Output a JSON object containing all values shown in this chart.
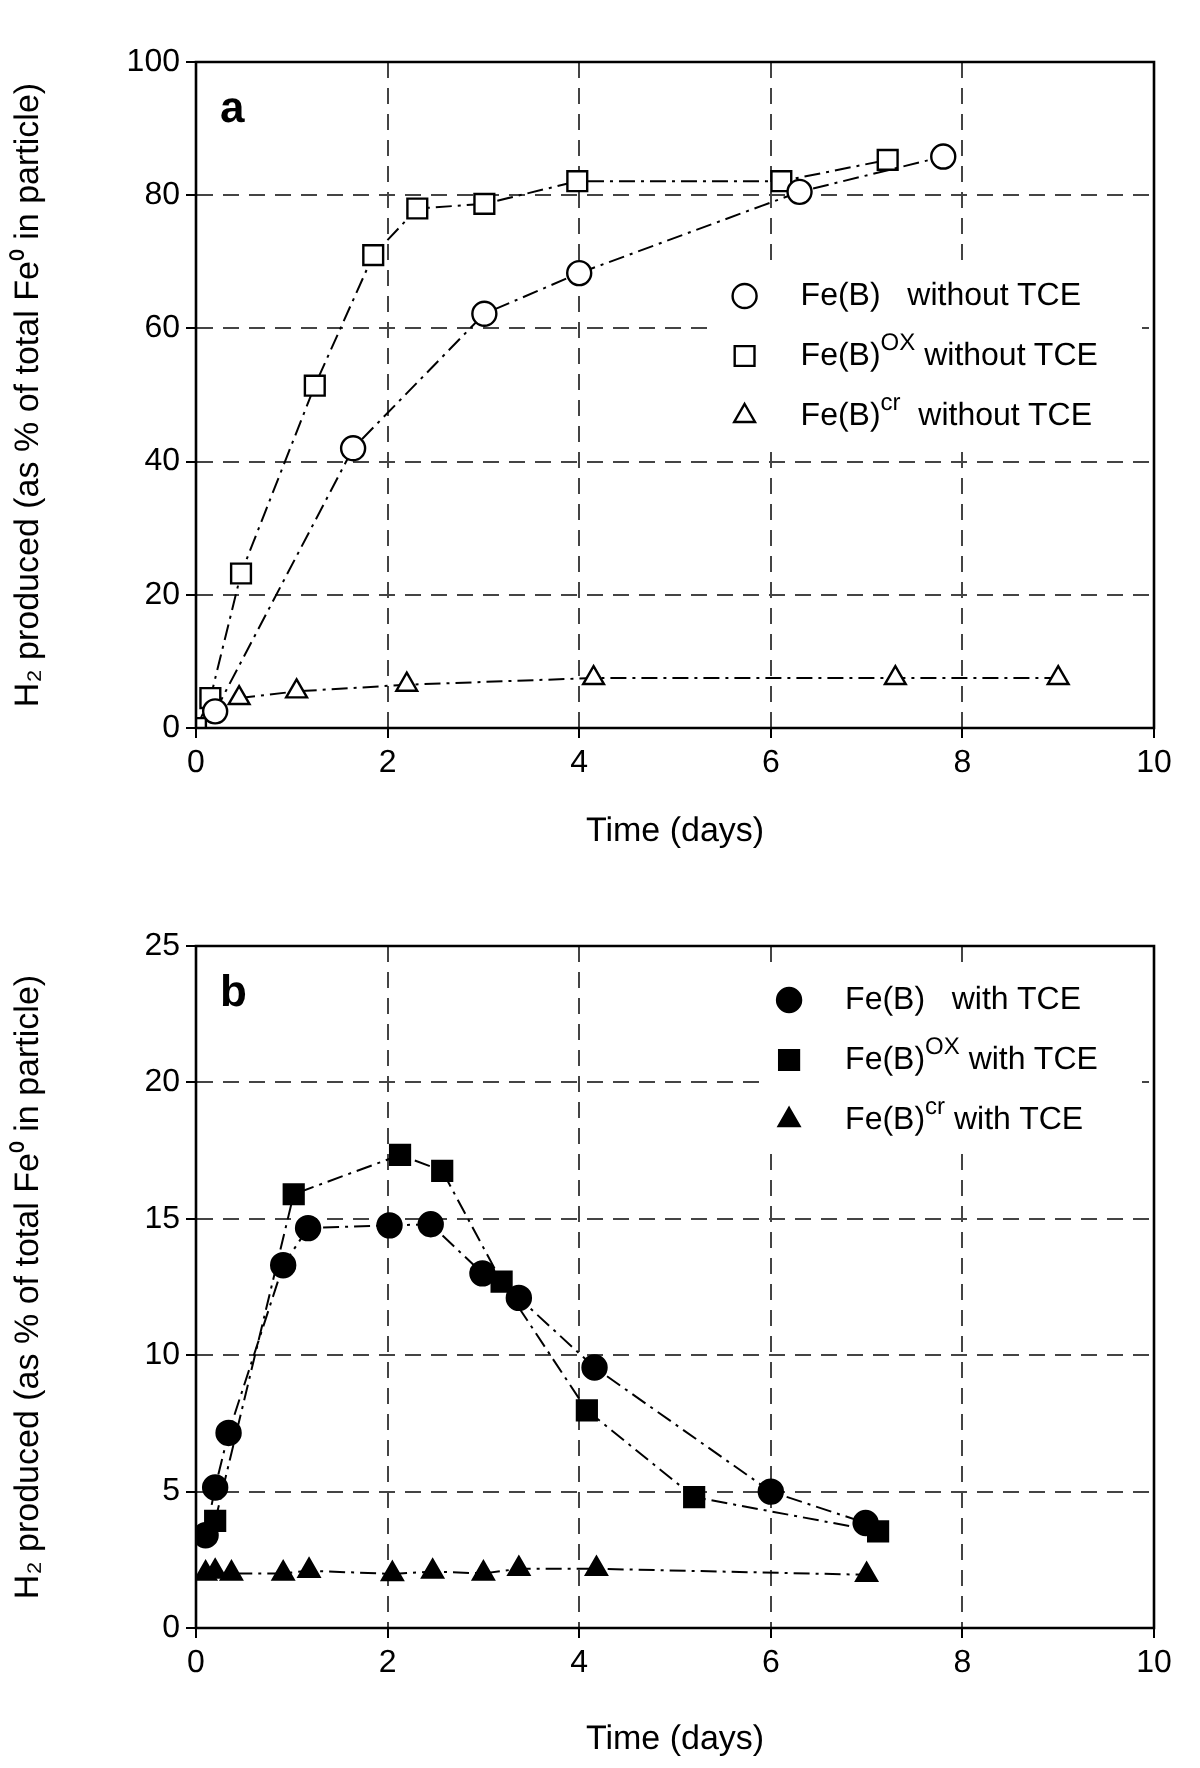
{
  "chart_data": [
    {
      "type": "line",
      "title": "a",
      "xlabel": "Time (days)",
      "ylabel": "H₂ produced (as % of total Fe⁰ in particle)",
      "xlim": [
        0,
        10
      ],
      "xticks": [
        0,
        2,
        4,
        6,
        8,
        10
      ],
      "ylim": [
        0,
        100
      ],
      "yticks": [
        0,
        20,
        40,
        60,
        80,
        100
      ],
      "grid": true,
      "legend": "top right",
      "line_style": "dashed",
      "series": [
        {
          "name": "Fe(B)   without TCE",
          "color": "#000000",
          "marker": "circle",
          "x": [
            0.2,
            1.64,
            3.01,
            4.0,
            6.3,
            7.8
          ],
          "values": [
            2.5,
            42,
            62.2,
            68.3,
            80.5,
            85.8
          ]
        },
        {
          "name": "Fe(B)$^{OX}$ without TCE",
          "color": "#000000",
          "marker": "square",
          "x": [
            0,
            0.15,
            0.47,
            1.24,
            1.85,
            2.31,
            3.01,
            3.98,
            6.11,
            7.22
          ],
          "values": [
            0,
            4.5,
            23.2,
            51.4,
            71,
            78,
            78.7,
            82.1,
            82.1,
            85.3
          ]
        },
        {
          "name": "Fe(B)$^{cr}$  without TCE",
          "color": "#000000",
          "marker": "triangle",
          "x": [
            0.45,
            1.05,
            2.2,
            4.15,
            7.3,
            9.0
          ],
          "values": [
            4.5,
            5.5,
            6.5,
            7.5,
            7.5,
            7.5
          ]
        }
      ]
    },
    {
      "type": "line",
      "title": "b",
      "xlabel": "Time (days)",
      "ylabel": "H₂ produced (as % of total Fe⁰ in particle)",
      "xlim": [
        0,
        10
      ],
      "xticks": [
        0,
        2,
        4,
        6,
        8,
        10
      ],
      "ylim": [
        0,
        25
      ],
      "yticks": [
        0,
        5,
        10,
        15,
        20,
        25
      ],
      "grid": true,
      "legend": "top right",
      "line_style": "dashed",
      "series": [
        {
          "name": "Fe(B)   with TCE",
          "color": "#000000",
          "marker": "circle",
          "x": [
            0.1,
            0.2,
            0.34,
            0.91,
            1.17,
            2.02,
            2.45,
            2.99,
            3.37,
            4.16,
            6.0,
            6.99
          ],
          "values": [
            3.4,
            5.15,
            7.15,
            13.3,
            14.66,
            14.76,
            14.8,
            13.0,
            12.1,
            9.55,
            5.0,
            3.85
          ]
        },
        {
          "name": "Fe(B)$^{OX}$ with TCE",
          "color": "#000000",
          "marker": "square",
          "x": [
            0.2,
            1.02,
            2.13,
            2.57,
            3.19,
            4.08,
            5.2,
            7.12
          ],
          "values": [
            3.93,
            15.9,
            17.34,
            16.76,
            12.7,
            7.98,
            4.8,
            3.54
          ]
        },
        {
          "name": "Fe(B)$^{cr}$ with TCE",
          "color": "#000000",
          "marker": "triangle",
          "x": [
            0.1,
            0.2,
            0.37,
            0.91,
            1.18,
            2.05,
            2.47,
            3.0,
            3.37,
            4.18,
            7.0
          ],
          "values": [
            2.0,
            2.07,
            2.0,
            2.0,
            2.1,
            1.98,
            2.07,
            2.0,
            2.17,
            2.17,
            1.95
          ]
        }
      ]
    }
  ]
}
